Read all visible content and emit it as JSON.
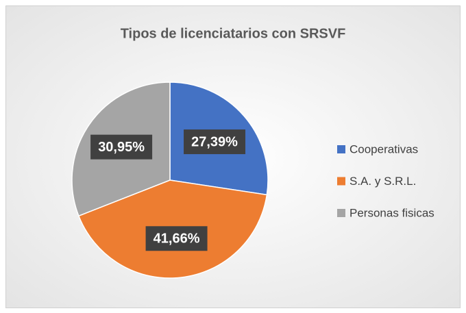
{
  "chart_data": {
    "type": "pie",
    "title": "Tipos de licenciatarios con SRSVF",
    "categories": [
      "Cooperativas",
      "S.A. y S.R.L.",
      "Personas fisicas"
    ],
    "values": [
      27.39,
      41.66,
      30.95
    ],
    "value_labels": [
      "27,39%",
      "41,66%",
      "30,95%"
    ],
    "colors": [
      "#4472c4",
      "#ed7d31",
      "#a5a5a5"
    ],
    "legend": "right"
  }
}
